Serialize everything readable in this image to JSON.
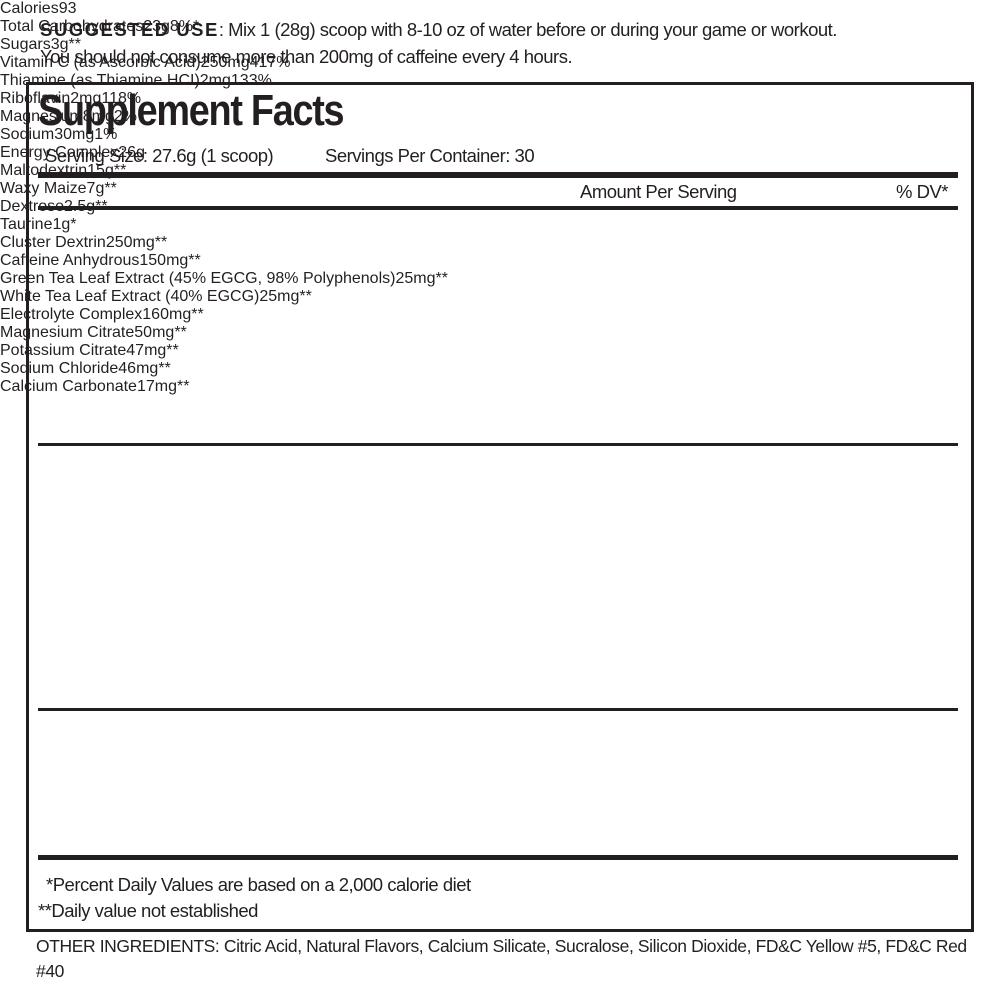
{
  "suggested_use": {
    "label": "SUGGESTED USE",
    "text": ": Mix 1 (28g) scoop with 8-10 oz of water before or during your game or workout.",
    "warning": "You should not consume more than 200mg of caffeine every 4 hours."
  },
  "facts": {
    "title": "Supplement Facts",
    "serving_size": "Serving Size:  27.6g (1 scoop)",
    "servings_per_container": "Servings Per Container: 30",
    "header": {
      "amount": "Amount Per Serving",
      "dv": "% DV*"
    },
    "sections": [
      [
        {
          "name": "Calories",
          "amount": 93
        },
        {
          "name": "Total Carbohydrates",
          "amount": 23,
          "unit": "g",
          "dv": "8%*",
          "items": [
            {
              "name": "Sugars",
              "amount": 3,
              "unit": "g",
              "dv": "**"
            }
          ]
        },
        {
          "name": "Vitamin C (as Ascorbic Acid)",
          "amount": 250,
          "unit": "mg",
          "dv": "417%"
        },
        {
          "name": "Thiamine (as Thiamine HCI)",
          "amount": 2,
          "unit": "mg",
          "dv": "133%"
        },
        {
          "name": "Riboflavin",
          "amount": 2,
          "unit": "mg",
          "dv": "118%"
        },
        {
          "name": "Magnesium",
          "amount": 8,
          "unit": "mg",
          "dv": "2%"
        },
        {
          "name": "Sodium",
          "amount": 30,
          "unit": "mg",
          "dv": "1%"
        }
      ],
      [
        {
          "name": "Energy Complex",
          "amount": 26,
          "unit": "g",
          "items": [
            {
              "name": "Maltodextrin",
              "amount": 15,
              "unit": "g",
              "dv": "**"
            },
            {
              "name": "Waxy Maize",
              "amount": 7,
              "unit": "g",
              "dv": "**"
            },
            {
              "name": "Dextrose",
              "amount": 2.5,
              "unit": "g",
              "dv": "**"
            },
            {
              "name": "Taurine",
              "amount": 1,
              "unit": "g",
              "dv": "*"
            },
            {
              "name": "Cluster Dextrin",
              "amount": 250,
              "unit": "mg",
              "dv": "**"
            },
            {
              "name": "Caffeine Anhydrous",
              "amount": 150,
              "unit": "mg",
              "dv": "**"
            },
            {
              "name": "Green Tea Leaf Extract (45% EGCG, 98% Polyphenols)",
              "amount": 25,
              "unit": "mg",
              "dv": "**"
            },
            {
              "name": "White Tea Leaf Extract (40% EGCG)",
              "amount": 25,
              "unit": "mg",
              "dv": "**"
            }
          ]
        }
      ],
      [
        {
          "name": "Electrolyte Complex",
          "amount": 160,
          "unit": "mg",
          "dv": "**",
          "items": [
            {
              "name": "Magnesium Citrate",
              "amount": 50,
              "unit": "mg",
              "dv": "**"
            },
            {
              "name": "Potassium Citrate",
              "amount": 47,
              "unit": "mg",
              "dv": "**"
            },
            {
              "name": "Sodium Chloride",
              "amount": 46,
              "unit": "mg",
              "dv": "**"
            },
            {
              "name": "Calcium Carbonate",
              "amount": 17,
              "unit": "mg",
              "dv": "**"
            }
          ]
        }
      ]
    ],
    "footnotes": [
      "*Percent Daily Values are based on a 2,000 calorie diet",
      "**Daily value not established"
    ]
  },
  "other_ingredients": "OTHER INGREDIENTS: Citric Acid, Natural Flavors, Calcium Silicate, Sucralose, Silicon Dioxide, FD&C Yellow #5, FD&C Red #40"
}
